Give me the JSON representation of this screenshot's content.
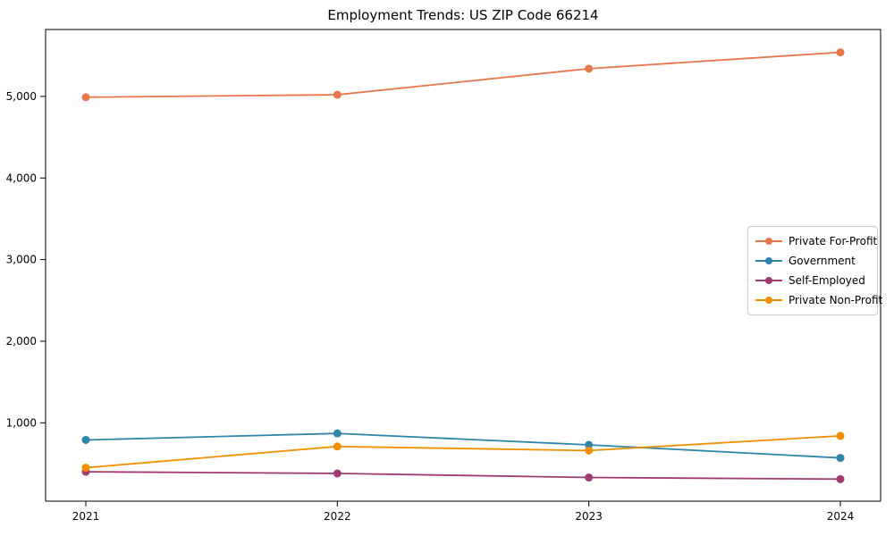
{
  "chart_data": {
    "type": "line",
    "title": "Employment Trends: US ZIP Code 66214",
    "xlabel": "",
    "ylabel": "",
    "categories": [
      "2021",
      "2022",
      "2023",
      "2024"
    ],
    "x": [
      2021,
      2022,
      2023,
      2024
    ],
    "series": [
      {
        "name": "Private For-Profit",
        "color": "#e8764b",
        "values": [
          4990,
          5020,
          5340,
          5540
        ]
      },
      {
        "name": "Government",
        "color": "#2e86ab",
        "values": [
          790,
          870,
          730,
          570
        ]
      },
      {
        "name": "Self-Employed",
        "color": "#a23b72",
        "values": [
          400,
          380,
          330,
          310
        ]
      },
      {
        "name": "Private Non-Profit",
        "color": "#f18f01",
        "values": [
          450,
          710,
          660,
          840
        ]
      }
    ],
    "yticks": [
      1000,
      2000,
      3000,
      4000,
      5000
    ],
    "ytick_labels": [
      "1,000",
      "2,000",
      "3,000",
      "4,000",
      "5,000"
    ],
    "ylim": [
      40,
      5820
    ],
    "grid": false,
    "legend_position": "center right",
    "marker": "circle",
    "axis_color": "#000000"
  }
}
